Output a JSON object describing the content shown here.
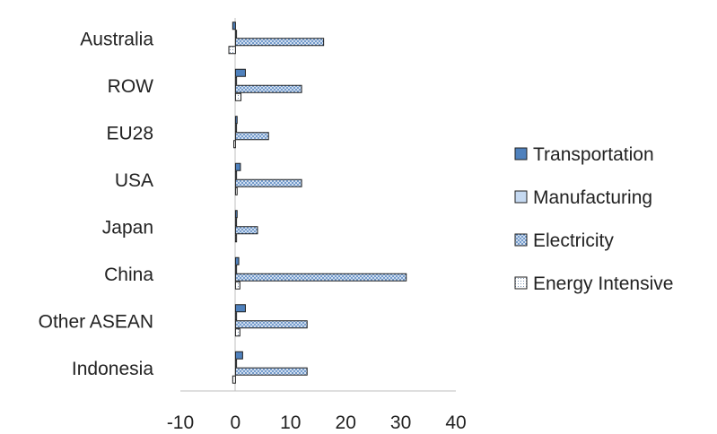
{
  "chart_data": {
    "type": "bar",
    "orientation": "horizontal",
    "categories": [
      "Australia",
      "ROW",
      "EU28",
      "USA",
      "Japan",
      "China",
      "Other ASEAN",
      "Indonesia"
    ],
    "series": [
      {
        "name": "Transportation",
        "values": [
          -0.5,
          1.8,
          0.3,
          0.9,
          0.3,
          0.6,
          1.8,
          1.3
        ],
        "color": "#4f81bd",
        "pattern": "solid"
      },
      {
        "name": "Manufacturing",
        "values": [
          0.1,
          0.2,
          0.1,
          0.2,
          0.1,
          0.2,
          0.2,
          0.1
        ],
        "color": "#c5d9f1",
        "pattern": "light"
      },
      {
        "name": "Electricity",
        "values": [
          16.0,
          12.0,
          6.0,
          12.0,
          4.0,
          31.0,
          13.0,
          13.0
        ],
        "color": "#4f81bd",
        "pattern": "crosshatch"
      },
      {
        "name": "Energy Intensive",
        "values": [
          -1.2,
          1.0,
          -0.3,
          0.3,
          0.2,
          0.8,
          0.8,
          -0.5
        ],
        "color": "#ffffff",
        "pattern": "dotted"
      }
    ],
    "x_ticks": [
      "-10",
      "0",
      "10",
      "20",
      "30",
      "40"
    ],
    "xlim": [
      -10,
      40
    ],
    "grid": false,
    "legend_position": "right"
  }
}
